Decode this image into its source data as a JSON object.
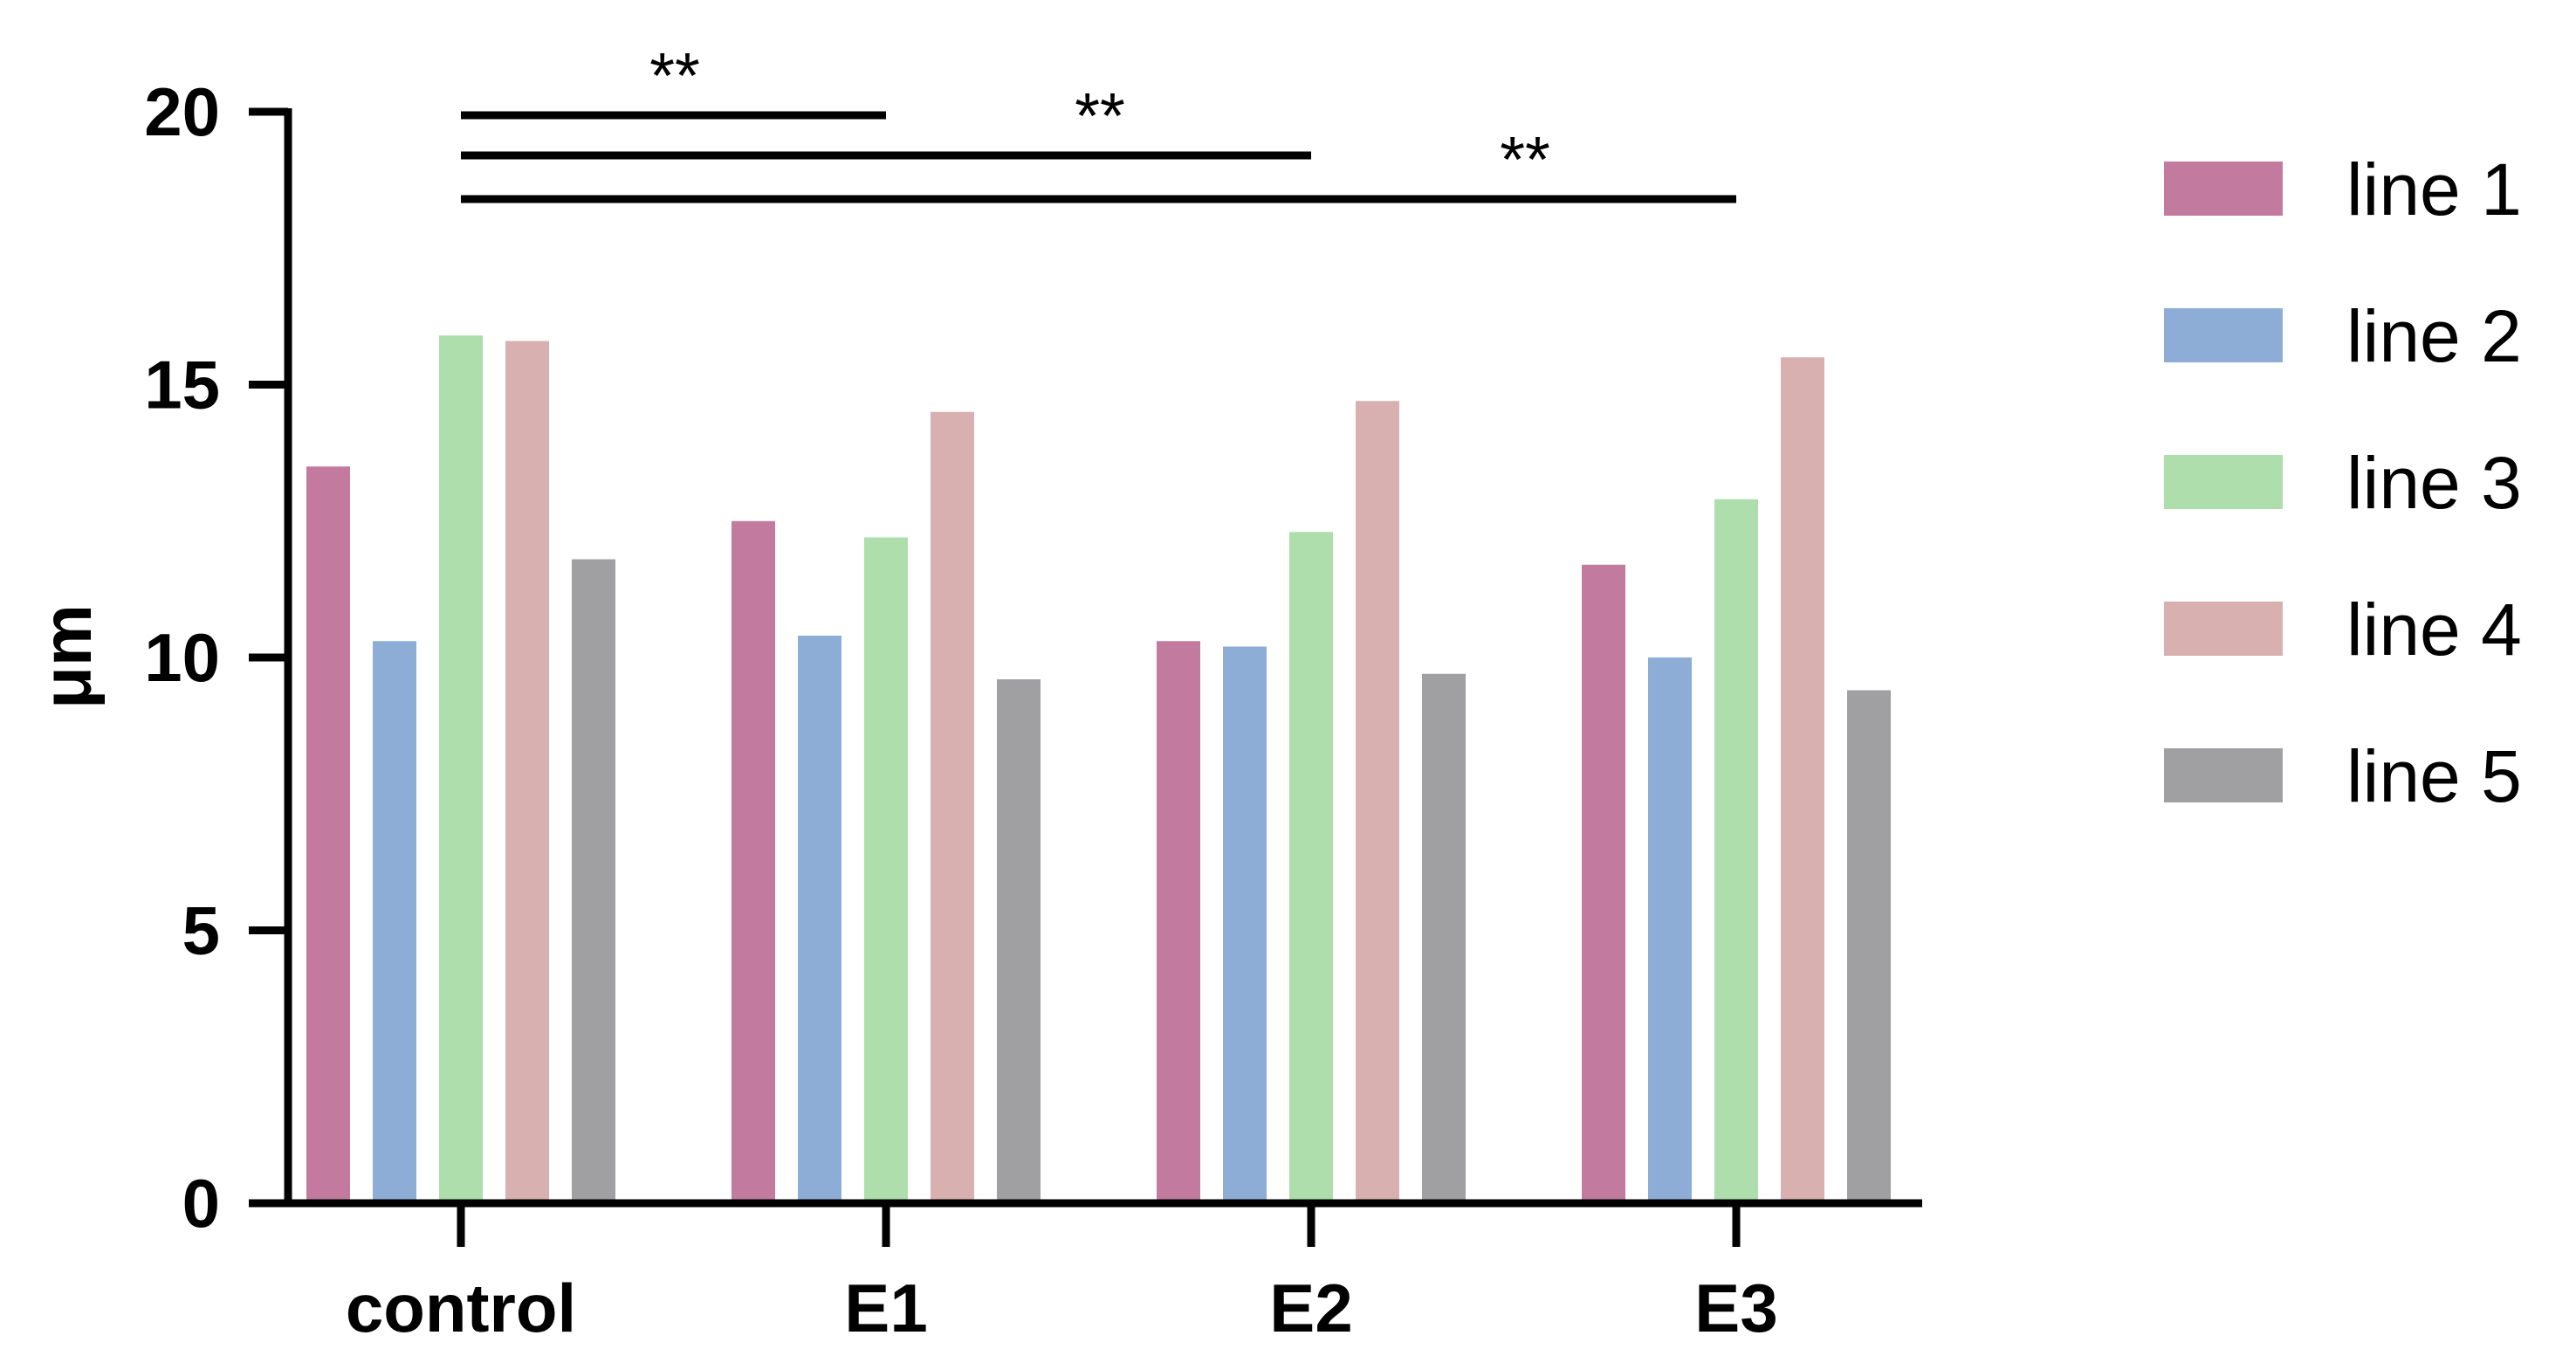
{
  "chart_data": {
    "type": "bar",
    "ylabel": "μm",
    "xlabel": "",
    "categories": [
      "control",
      "E1",
      "E2",
      "E3"
    ],
    "ylim": [
      0,
      20
    ],
    "yticks": [
      "0",
      "5",
      "10",
      "15",
      "20"
    ],
    "legend_position": "right",
    "grid": false,
    "series": [
      {
        "name": "line 1",
        "color": "#C27B9E",
        "values": [
          13.5,
          12.5,
          10.3,
          11.7
        ]
      },
      {
        "name": "line 2",
        "color": "#8DACD6",
        "values": [
          10.3,
          10.4,
          10.2,
          10.0
        ]
      },
      {
        "name": "line 3",
        "color": "#ADDEAC",
        "values": [
          15.9,
          12.2,
          12.3,
          12.9
        ]
      },
      {
        "name": "line 4",
        "color": "#D8B0AF",
        "values": [
          15.8,
          14.5,
          14.7,
          15.5
        ]
      },
      {
        "name": "line 5",
        "color": "#A0A0A3",
        "values": [
          11.8,
          9.6,
          9.7,
          9.4
        ]
      }
    ],
    "significance": [
      {
        "from": "control",
        "to": "E1",
        "label": "**"
      },
      {
        "from": "control",
        "to": "E2",
        "label": "**"
      },
      {
        "from": "control",
        "to": "E3",
        "label": "**"
      }
    ]
  }
}
